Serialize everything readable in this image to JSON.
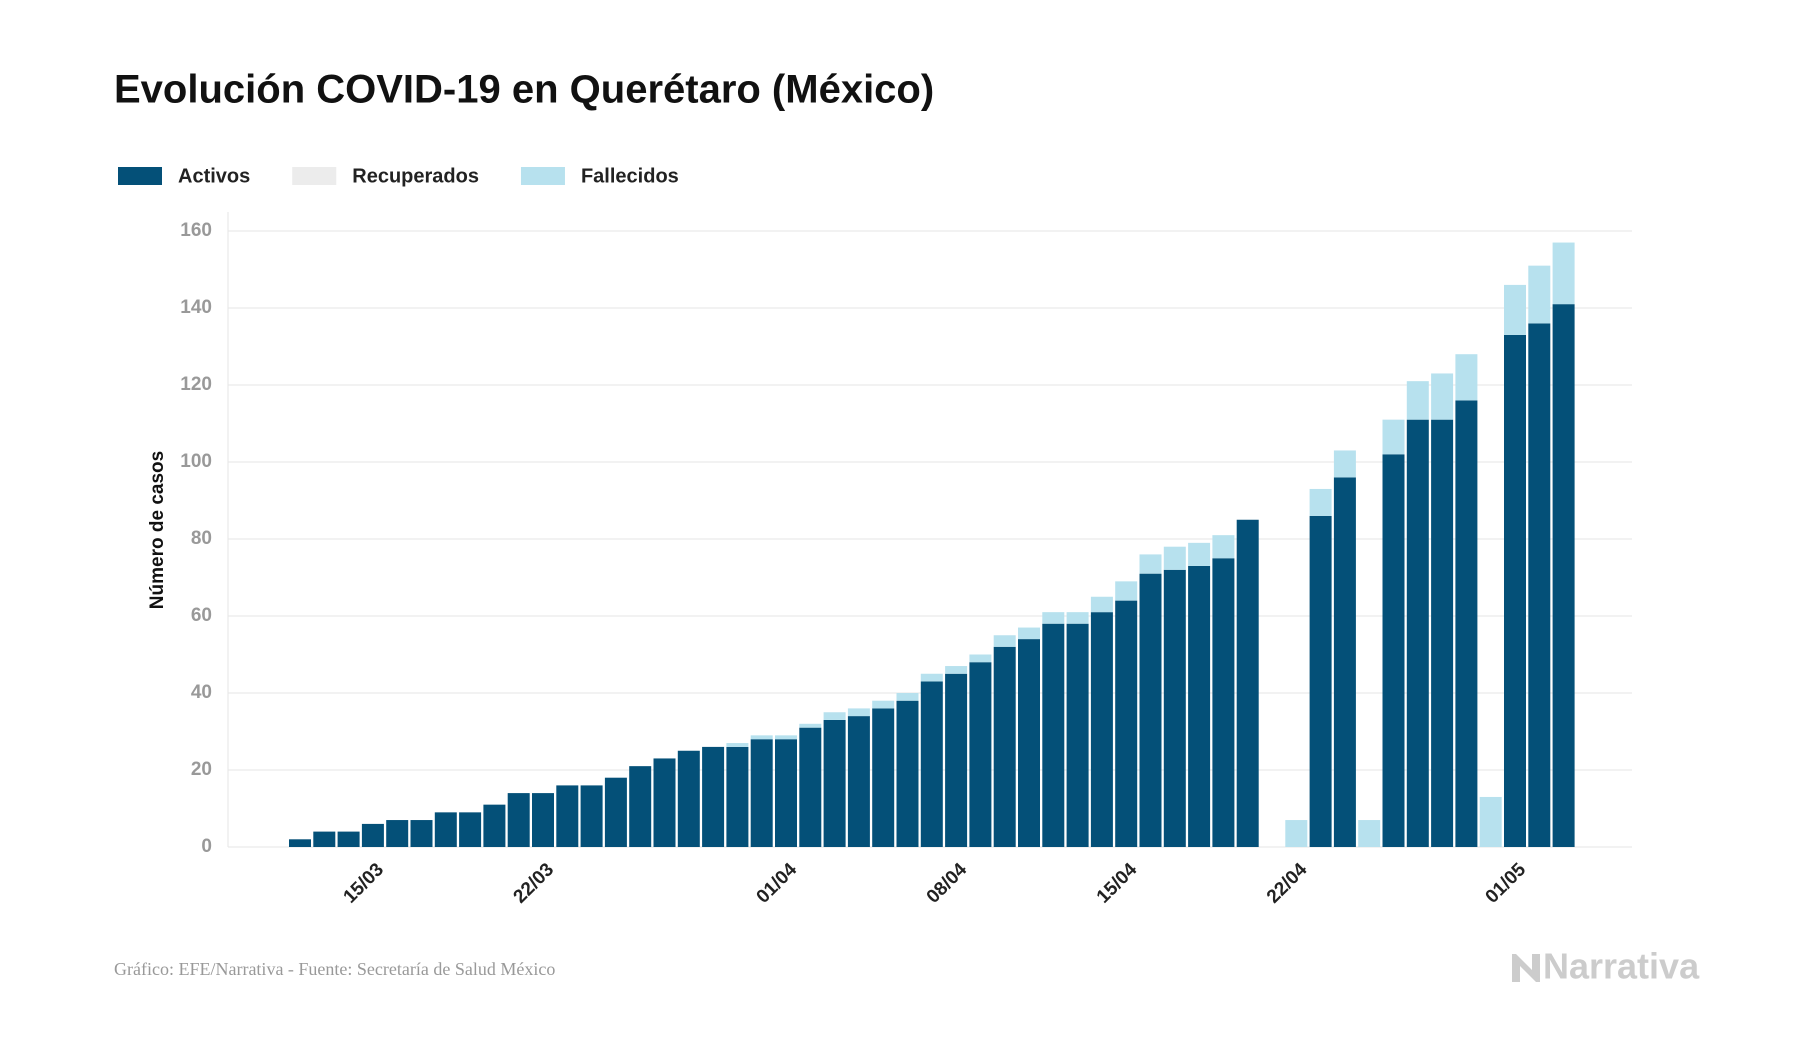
{
  "chart_data": {
    "type": "bar",
    "stacked": true,
    "title": "Evolución COVID-19 en Querétaro (México)",
    "ylabel": "Número de casos",
    "source": "Gráfico: EFE/Narrativa - Fuente: Secretaría de Salud México",
    "logo": "Narrativa",
    "categories": [
      null,
      null,
      null,
      "15/03",
      null,
      null,
      null,
      null,
      null,
      null,
      "22/03",
      null,
      null,
      null,
      null,
      null,
      null,
      null,
      null,
      null,
      "01/04",
      null,
      null,
      null,
      null,
      null,
      null,
      "08/04",
      null,
      null,
      null,
      null,
      null,
      null,
      "15/04",
      null,
      null,
      null,
      null,
      null,
      null,
      "22/04",
      null,
      null,
      null,
      null,
      null,
      null,
      null,
      null,
      "01/05",
      null,
      null
    ],
    "series": [
      {
        "name": "Activos",
        "color": "#045078",
        "values": [
          2,
          4,
          4,
          6,
          7,
          7,
          9,
          9,
          11,
          14,
          14,
          16,
          16,
          18,
          21,
          23,
          25,
          26,
          26,
          28,
          28,
          31,
          33,
          34,
          36,
          38,
          43,
          45,
          48,
          52,
          54,
          58,
          58,
          61,
          64,
          71,
          72,
          73,
          75,
          85,
          null,
          null,
          86,
          96,
          null,
          102,
          111,
          111,
          116,
          null,
          133,
          136,
          141
        ]
      },
      {
        "name": "Recuperados",
        "color": "#ececec",
        "values": [
          0,
          0,
          0,
          0,
          0,
          0,
          0,
          0,
          0,
          0,
          0,
          0,
          0,
          0,
          0,
          0,
          0,
          0,
          0,
          0,
          0,
          0,
          0,
          0,
          0,
          0,
          0,
          0,
          0,
          0,
          0,
          0,
          0,
          0,
          0,
          0,
          0,
          0,
          0,
          0,
          null,
          0,
          0,
          0,
          0,
          0,
          0,
          0,
          0,
          0,
          0,
          0,
          0
        ]
      },
      {
        "name": "Fallecidos",
        "color": "#b7e1ee",
        "values": [
          0,
          0,
          0,
          0,
          0,
          0,
          0,
          0,
          0,
          0,
          0,
          0,
          0,
          0,
          0,
          0,
          0,
          0,
          1,
          1,
          1,
          1,
          2,
          2,
          2,
          2,
          2,
          2,
          2,
          3,
          3,
          3,
          3,
          4,
          5,
          5,
          6,
          6,
          6,
          0,
          null,
          7,
          7,
          7,
          7,
          9,
          10,
          12,
          12,
          13,
          13,
          15,
          16
        ]
      }
    ],
    "ylim": [
      0,
      160
    ],
    "yticks": [
      0,
      20,
      40,
      60,
      80,
      100,
      120,
      140,
      160
    ],
    "grid": true
  }
}
